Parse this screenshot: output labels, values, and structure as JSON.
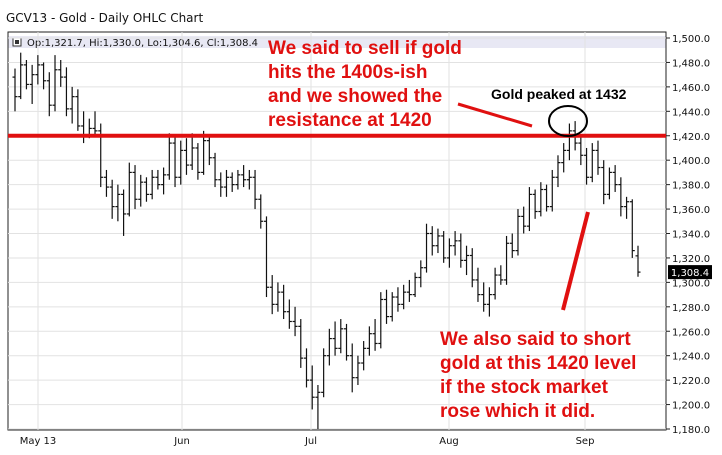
{
  "chart_header": {
    "title": "GCV13 - Gold - Daily OHLC Chart",
    "ohlc_readout": "Op:1,321.7, Hi:1,330.0, Lo:1,304.6, Cl:1,308.4",
    "menu_icon": "dropdown-square-icon"
  },
  "chart_data": {
    "type": "ohlc",
    "title": "GCV13 - Gold - Daily OHLC Chart",
    "xlabel": "",
    "ylabel": "",
    "ylim": [
      1180,
      1500
    ],
    "grid": true,
    "y_axis_position": "right",
    "y_ticks": [
      "1,500.0",
      "1,480.0",
      "1,460.0",
      "1,440.0",
      "1,420.0",
      "1,400.0",
      "1,380.0",
      "1,360.0",
      "1,340.0",
      "1,320.0",
      "1,300.0",
      "1,280.0",
      "1,260.0",
      "1,240.0",
      "1,220.0",
      "1,200.0",
      "1,180.0"
    ],
    "x_ticks": [
      "May 13",
      "Jun",
      "Jul",
      "Aug",
      "Sep"
    ],
    "last_price_label": "1,308.4",
    "resistance_level": 1420,
    "bars": [
      {
        "o": 1468,
        "h": 1475,
        "l": 1440,
        "c": 1452
      },
      {
        "o": 1452,
        "h": 1488,
        "l": 1450,
        "c": 1478
      },
      {
        "o": 1478,
        "h": 1482,
        "l": 1458,
        "c": 1462
      },
      {
        "o": 1462,
        "h": 1478,
        "l": 1446,
        "c": 1470
      },
      {
        "o": 1470,
        "h": 1486,
        "l": 1462,
        "c": 1478
      },
      {
        "o": 1478,
        "h": 1480,
        "l": 1458,
        "c": 1465
      },
      {
        "o": 1465,
        "h": 1472,
        "l": 1436,
        "c": 1445
      },
      {
        "o": 1445,
        "h": 1486,
        "l": 1440,
        "c": 1474
      },
      {
        "o": 1474,
        "h": 1482,
        "l": 1460,
        "c": 1468
      },
      {
        "o": 1468,
        "h": 1476,
        "l": 1436,
        "c": 1442
      },
      {
        "o": 1442,
        "h": 1460,
        "l": 1430,
        "c": 1452
      },
      {
        "o": 1452,
        "h": 1458,
        "l": 1424,
        "c": 1428
      },
      {
        "o": 1428,
        "h": 1440,
        "l": 1414,
        "c": 1420
      },
      {
        "o": 1420,
        "h": 1434,
        "l": 1418,
        "c": 1426
      },
      {
        "o": 1426,
        "h": 1440,
        "l": 1420,
        "c": 1424
      },
      {
        "o": 1424,
        "h": 1430,
        "l": 1378,
        "c": 1386
      },
      {
        "o": 1386,
        "h": 1392,
        "l": 1370,
        "c": 1378
      },
      {
        "o": 1378,
        "h": 1384,
        "l": 1352,
        "c": 1362
      },
      {
        "o": 1362,
        "h": 1380,
        "l": 1350,
        "c": 1372
      },
      {
        "o": 1372,
        "h": 1376,
        "l": 1338,
        "c": 1356
      },
      {
        "o": 1356,
        "h": 1398,
        "l": 1354,
        "c": 1390
      },
      {
        "o": 1390,
        "h": 1396,
        "l": 1360,
        "c": 1368
      },
      {
        "o": 1368,
        "h": 1388,
        "l": 1362,
        "c": 1382
      },
      {
        "o": 1382,
        "h": 1386,
        "l": 1366,
        "c": 1372
      },
      {
        "o": 1372,
        "h": 1392,
        "l": 1368,
        "c": 1386
      },
      {
        "o": 1386,
        "h": 1392,
        "l": 1376,
        "c": 1380
      },
      {
        "o": 1380,
        "h": 1394,
        "l": 1372,
        "c": 1388
      },
      {
        "o": 1388,
        "h": 1422,
        "l": 1384,
        "c": 1414
      },
      {
        "o": 1414,
        "h": 1420,
        "l": 1378,
        "c": 1386
      },
      {
        "o": 1386,
        "h": 1416,
        "l": 1380,
        "c": 1408
      },
      {
        "o": 1408,
        "h": 1418,
        "l": 1388,
        "c": 1396
      },
      {
        "o": 1396,
        "h": 1422,
        "l": 1392,
        "c": 1410
      },
      {
        "o": 1410,
        "h": 1414,
        "l": 1384,
        "c": 1390
      },
      {
        "o": 1390,
        "h": 1424,
        "l": 1388,
        "c": 1416
      },
      {
        "o": 1416,
        "h": 1420,
        "l": 1396,
        "c": 1402
      },
      {
        "o": 1402,
        "h": 1406,
        "l": 1378,
        "c": 1384
      },
      {
        "o": 1384,
        "h": 1390,
        "l": 1370,
        "c": 1378
      },
      {
        "o": 1378,
        "h": 1392,
        "l": 1370,
        "c": 1386
      },
      {
        "o": 1386,
        "h": 1390,
        "l": 1374,
        "c": 1380
      },
      {
        "o": 1380,
        "h": 1392,
        "l": 1376,
        "c": 1388
      },
      {
        "o": 1388,
        "h": 1396,
        "l": 1378,
        "c": 1384
      },
      {
        "o": 1384,
        "h": 1392,
        "l": 1376,
        "c": 1386
      },
      {
        "o": 1386,
        "h": 1392,
        "l": 1360,
        "c": 1368
      },
      {
        "o": 1368,
        "h": 1372,
        "l": 1344,
        "c": 1350
      },
      {
        "o": 1350,
        "h": 1354,
        "l": 1288,
        "c": 1296
      },
      {
        "o": 1296,
        "h": 1306,
        "l": 1274,
        "c": 1282
      },
      {
        "o": 1282,
        "h": 1300,
        "l": 1276,
        "c": 1292
      },
      {
        "o": 1292,
        "h": 1298,
        "l": 1270,
        "c": 1276
      },
      {
        "o": 1276,
        "h": 1286,
        "l": 1262,
        "c": 1268
      },
      {
        "o": 1268,
        "h": 1280,
        "l": 1256,
        "c": 1264
      },
      {
        "o": 1264,
        "h": 1270,
        "l": 1230,
        "c": 1238
      },
      {
        "o": 1238,
        "h": 1246,
        "l": 1214,
        "c": 1220
      },
      {
        "o": 1220,
        "h": 1232,
        "l": 1196,
        "c": 1206
      },
      {
        "o": 1206,
        "h": 1216,
        "l": 1180,
        "c": 1210
      },
      {
        "o": 1210,
        "h": 1246,
        "l": 1206,
        "c": 1240
      },
      {
        "o": 1240,
        "h": 1262,
        "l": 1232,
        "c": 1254
      },
      {
        "o": 1254,
        "h": 1268,
        "l": 1240,
        "c": 1246
      },
      {
        "o": 1246,
        "h": 1270,
        "l": 1242,
        "c": 1262
      },
      {
        "o": 1262,
        "h": 1266,
        "l": 1236,
        "c": 1240
      },
      {
        "o": 1240,
        "h": 1250,
        "l": 1210,
        "c": 1222
      },
      {
        "o": 1222,
        "h": 1240,
        "l": 1216,
        "c": 1234
      },
      {
        "o": 1234,
        "h": 1252,
        "l": 1228,
        "c": 1246
      },
      {
        "o": 1246,
        "h": 1264,
        "l": 1240,
        "c": 1258
      },
      {
        "o": 1258,
        "h": 1270,
        "l": 1244,
        "c": 1250
      },
      {
        "o": 1250,
        "h": 1292,
        "l": 1246,
        "c": 1286
      },
      {
        "o": 1286,
        "h": 1294,
        "l": 1266,
        "c": 1272
      },
      {
        "o": 1272,
        "h": 1292,
        "l": 1268,
        "c": 1288
      },
      {
        "o": 1288,
        "h": 1296,
        "l": 1276,
        "c": 1282
      },
      {
        "o": 1282,
        "h": 1298,
        "l": 1278,
        "c": 1292
      },
      {
        "o": 1292,
        "h": 1302,
        "l": 1284,
        "c": 1290
      },
      {
        "o": 1290,
        "h": 1308,
        "l": 1288,
        "c": 1304
      },
      {
        "o": 1304,
        "h": 1318,
        "l": 1296,
        "c": 1312
      },
      {
        "o": 1312,
        "h": 1348,
        "l": 1308,
        "c": 1340
      },
      {
        "o": 1340,
        "h": 1346,
        "l": 1322,
        "c": 1330
      },
      {
        "o": 1330,
        "h": 1344,
        "l": 1324,
        "c": 1338
      },
      {
        "o": 1338,
        "h": 1342,
        "l": 1316,
        "c": 1320
      },
      {
        "o": 1320,
        "h": 1336,
        "l": 1312,
        "c": 1330
      },
      {
        "o": 1330,
        "h": 1342,
        "l": 1322,
        "c": 1334
      },
      {
        "o": 1334,
        "h": 1340,
        "l": 1312,
        "c": 1318
      },
      {
        "o": 1318,
        "h": 1330,
        "l": 1306,
        "c": 1322
      },
      {
        "o": 1322,
        "h": 1328,
        "l": 1296,
        "c": 1302
      },
      {
        "o": 1302,
        "h": 1312,
        "l": 1284,
        "c": 1290
      },
      {
        "o": 1290,
        "h": 1300,
        "l": 1276,
        "c": 1282
      },
      {
        "o": 1282,
        "h": 1296,
        "l": 1272,
        "c": 1290
      },
      {
        "o": 1290,
        "h": 1312,
        "l": 1286,
        "c": 1306
      },
      {
        "o": 1306,
        "h": 1314,
        "l": 1298,
        "c": 1302
      },
      {
        "o": 1302,
        "h": 1338,
        "l": 1298,
        "c": 1332
      },
      {
        "o": 1332,
        "h": 1340,
        "l": 1320,
        "c": 1326
      },
      {
        "o": 1326,
        "h": 1360,
        "l": 1322,
        "c": 1354
      },
      {
        "o": 1354,
        "h": 1362,
        "l": 1340,
        "c": 1346
      },
      {
        "o": 1346,
        "h": 1378,
        "l": 1342,
        "c": 1372
      },
      {
        "o": 1372,
        "h": 1376,
        "l": 1352,
        "c": 1358
      },
      {
        "o": 1358,
        "h": 1382,
        "l": 1354,
        "c": 1376
      },
      {
        "o": 1376,
        "h": 1380,
        "l": 1358,
        "c": 1362
      },
      {
        "o": 1362,
        "h": 1392,
        "l": 1358,
        "c": 1386
      },
      {
        "o": 1386,
        "h": 1404,
        "l": 1378,
        "c": 1398
      },
      {
        "o": 1398,
        "h": 1414,
        "l": 1390,
        "c": 1408
      },
      {
        "o": 1408,
        "h": 1430,
        "l": 1400,
        "c": 1424
      },
      {
        "o": 1424,
        "h": 1432,
        "l": 1408,
        "c": 1414
      },
      {
        "o": 1414,
        "h": 1420,
        "l": 1396,
        "c": 1404
      },
      {
        "o": 1404,
        "h": 1410,
        "l": 1380,
        "c": 1386
      },
      {
        "o": 1386,
        "h": 1414,
        "l": 1382,
        "c": 1408
      },
      {
        "o": 1408,
        "h": 1416,
        "l": 1388,
        "c": 1394
      },
      {
        "o": 1394,
        "h": 1400,
        "l": 1364,
        "c": 1372
      },
      {
        "o": 1372,
        "h": 1394,
        "l": 1368,
        "c": 1390
      },
      {
        "o": 1390,
        "h": 1396,
        "l": 1374,
        "c": 1380
      },
      {
        "o": 1380,
        "h": 1386,
        "l": 1354,
        "c": 1362
      },
      {
        "o": 1362,
        "h": 1370,
        "l": 1352,
        "c": 1366
      },
      {
        "o": 1366,
        "h": 1368,
        "l": 1320,
        "c": 1326
      },
      {
        "o": 1321.7,
        "h": 1330.0,
        "l": 1304.6,
        "c": 1308.4
      }
    ]
  },
  "annotations": {
    "sell_note": [
      "We said to sell if gold",
      "hits the 1400s-ish",
      "and we showed the",
      "resistance at 1420"
    ],
    "peak_note": "Gold peaked at 1432",
    "short_note": [
      "We also said to short",
      "gold at this 1420 level",
      "if the stock market",
      "rose which it did."
    ],
    "note_color": "#e01010",
    "line_color": "#e01010"
  }
}
